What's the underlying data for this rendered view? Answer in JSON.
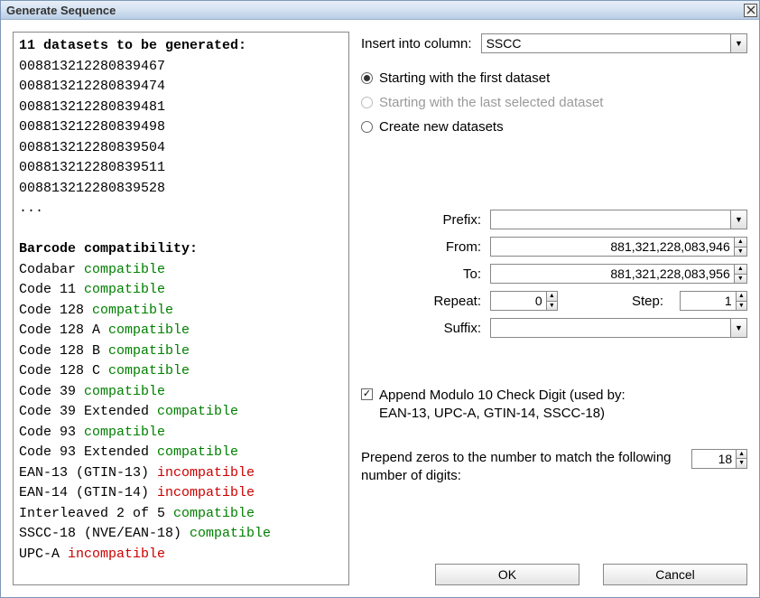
{
  "title": "Generate Sequence",
  "preview": {
    "header": "11 datasets to be generated:",
    "items": [
      "00881321228083946 7",
      "00881321228083947 4",
      "00881321228083948 1",
      "00881321228083949 8",
      "00881321228083950 4",
      "00881321228083951 1",
      "00881321228083952 8"
    ],
    "ellipsis": "...",
    "compat_header": "Barcode compatibility:",
    "compat": [
      {
        "name": "Codabar",
        "status": "compatible",
        "ok": true
      },
      {
        "name": "Code 11",
        "status": "compatible",
        "ok": true
      },
      {
        "name": "Code 128",
        "status": "compatible",
        "ok": true
      },
      {
        "name": "Code 128 A",
        "status": "compatible",
        "ok": true
      },
      {
        "name": "Code 128 B",
        "status": "compatible",
        "ok": true
      },
      {
        "name": "Code 128 C",
        "status": "compatible",
        "ok": true
      },
      {
        "name": "Code 39",
        "status": "compatible",
        "ok": true
      },
      {
        "name": "Code 39 Extended",
        "status": "compatible",
        "ok": true
      },
      {
        "name": "Code 93",
        "status": "compatible",
        "ok": true
      },
      {
        "name": "Code 93 Extended",
        "status": "compatible",
        "ok": true
      },
      {
        "name": "EAN-13 (GTIN-13)",
        "status": "incompatible",
        "ok": false
      },
      {
        "name": "EAN-14 (GTIN-14)",
        "status": "incompatible",
        "ok": false
      },
      {
        "name": "Interleaved 2 of 5",
        "status": "compatible",
        "ok": true
      },
      {
        "name": "SSCC-18 (NVE/EAN-18)",
        "status": "compatible",
        "ok": true
      },
      {
        "name": "UPC-A",
        "status": "incompatible",
        "ok": false
      }
    ]
  },
  "form": {
    "insert_label": "Insert into column:",
    "insert_value": "SSCC",
    "radio": {
      "first": "Starting with the first dataset",
      "last": "Starting with the last selected dataset",
      "new": "Create new datasets"
    },
    "prefix_label": "Prefix:",
    "prefix_value": "",
    "from_label": "From:",
    "from_value": "881,321,228,083,946",
    "to_label": "To:",
    "to_value": "881,321,228,083,956",
    "repeat_label": "Repeat:",
    "repeat_value": "0",
    "step_label": "Step:",
    "step_value": "1",
    "suffix_label": "Suffix:",
    "suffix_value": "",
    "append_check": "Append Modulo 10 Check Digit (used by: EAN-13, UPC-A, GTIN-14, SSCC-18)",
    "prepend_label": "Prepend zeros to the number to match the following number of digits:",
    "prepend_value": "18"
  },
  "buttons": {
    "ok": "OK",
    "cancel": "Cancel"
  }
}
